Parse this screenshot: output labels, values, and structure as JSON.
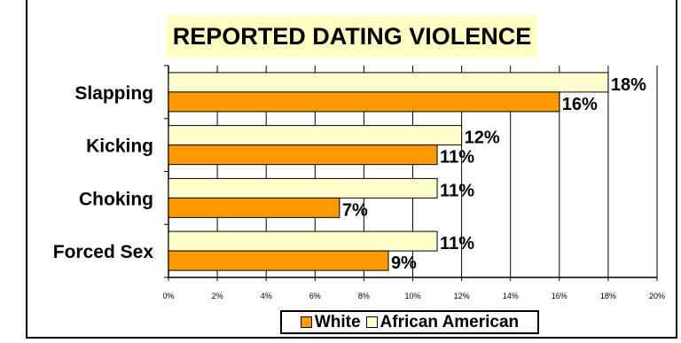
{
  "chart_data": {
    "type": "bar",
    "orientation": "horizontal",
    "title": "REPORTED DATING VIOLENCE",
    "categories": [
      "Slapping",
      "Kicking",
      "Choking",
      "Forced Sex"
    ],
    "series": [
      {
        "name": "African American",
        "values": [
          18,
          12,
          11,
          11
        ],
        "labels": [
          "18%",
          "12%",
          "11%",
          "11%"
        ],
        "color": "#ffffcc"
      },
      {
        "name": "White",
        "values": [
          16,
          11,
          7,
          9
        ],
        "labels": [
          "16%",
          "11%",
          "7%",
          "9%"
        ],
        "color": "#ff9900"
      }
    ],
    "xlim": [
      0,
      20
    ],
    "x_ticks": [
      0,
      2,
      4,
      6,
      8,
      10,
      12,
      14,
      16,
      18,
      20
    ],
    "x_tick_labels": [
      "0%",
      "2%",
      "4%",
      "6%",
      "8%",
      "10%",
      "12%",
      "14%",
      "16%",
      "18%",
      "20%"
    ],
    "grid": "vertical",
    "legend": {
      "position": "bottom",
      "items": [
        {
          "label": "White",
          "color": "#ff9900"
        },
        {
          "label": "African American",
          "color": "#ffffcc"
        }
      ]
    }
  }
}
